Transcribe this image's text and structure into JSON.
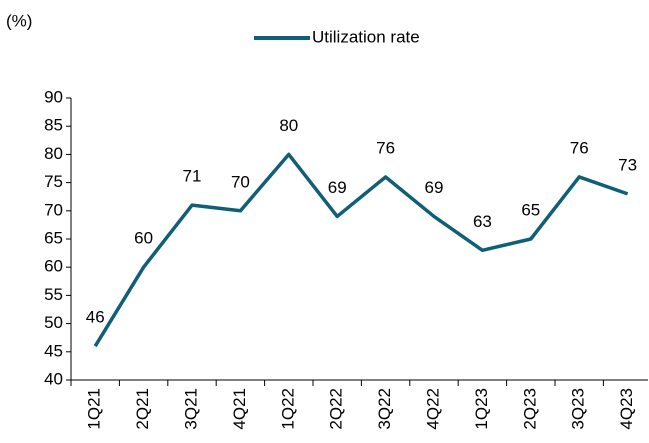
{
  "chart_data": {
    "type": "line",
    "y_label": "(%)",
    "categories": [
      "1Q21",
      "2Q21",
      "3Q21",
      "4Q21",
      "1Q22",
      "2Q22",
      "3Q22",
      "4Q22",
      "1Q23",
      "2Q23",
      "3Q23",
      "4Q23"
    ],
    "series": [
      {
        "name": "Utilization rate",
        "color": "#0f5f78",
        "values": [
          46,
          60,
          71,
          70,
          80,
          69,
          76,
          69,
          63,
          65,
          76,
          73
        ]
      }
    ],
    "ylim": [
      40,
      90
    ],
    "yticks": [
      40,
      45,
      50,
      55,
      60,
      65,
      70,
      75,
      80,
      85,
      90
    ],
    "legend": "top"
  }
}
